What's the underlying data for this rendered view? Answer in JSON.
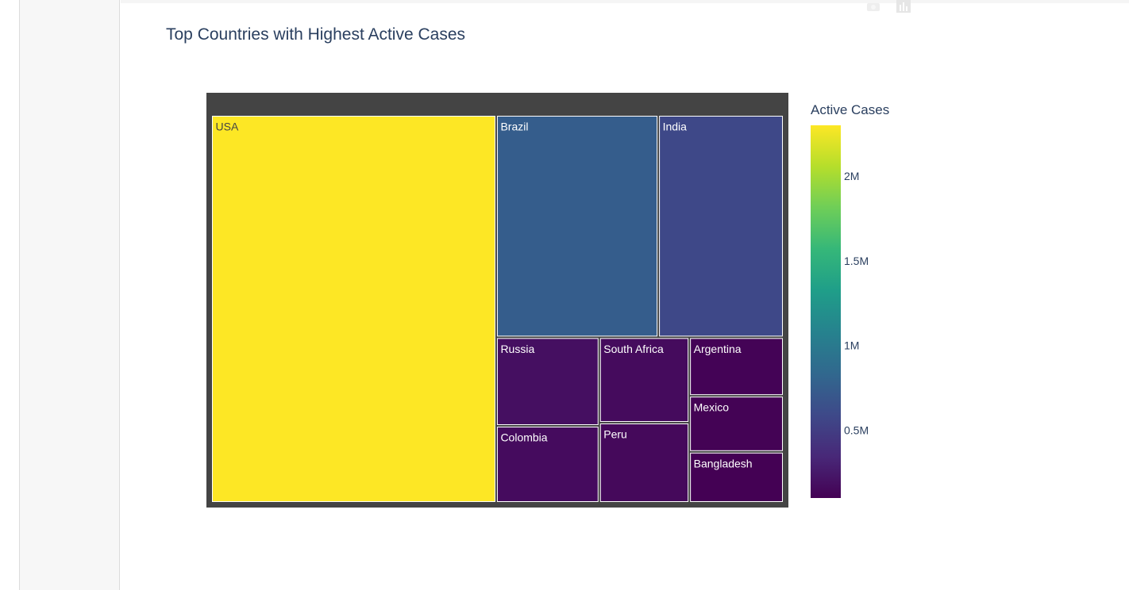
{
  "chart_data": {
    "type": "treemap",
    "title": "Top Countries with Highest Active Cases",
    "colorscale": "viridis",
    "colorbar": {
      "title": "Active Cases",
      "range": [
        100000,
        2300000
      ],
      "ticks": [
        {
          "value": 2000000,
          "label": "2M"
        },
        {
          "value": 1500000,
          "label": "1.5M"
        },
        {
          "value": 1000000,
          "label": "1M"
        },
        {
          "value": 500000,
          "label": "0.5M"
        }
      ]
    },
    "colors": {
      "root_background": "#444444",
      "tile_border": "#ffffff"
    },
    "items": [
      {
        "name": "USA",
        "value": 2300000
      },
      {
        "name": "Brazil",
        "value": 750000
      },
      {
        "name": "India",
        "value": 580000
      },
      {
        "name": "Russia",
        "value": 190000
      },
      {
        "name": "Colombia",
        "value": 165000
      },
      {
        "name": "South Africa",
        "value": 160000
      },
      {
        "name": "Peru",
        "value": 150000
      },
      {
        "name": "Argentina",
        "value": 115000
      },
      {
        "name": "Mexico",
        "value": 110000
      },
      {
        "name": "Bangladesh",
        "value": 100000
      }
    ]
  }
}
